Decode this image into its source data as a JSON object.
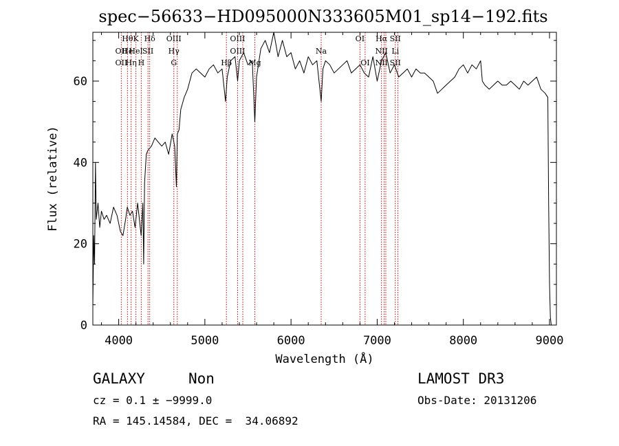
{
  "chart_data": {
    "type": "line",
    "title": "spec−56633−HD095000N333605M01_sp14−192.fits",
    "xlabel": "Wavelength (Å)",
    "ylabel": "Flux (relative)",
    "xlim": [
      3700,
      9080
    ],
    "ylim": [
      0,
      72
    ],
    "x_ticks": [
      4000,
      5000,
      6000,
      7000,
      8000,
      9000
    ],
    "y_ticks": [
      0,
      20,
      40,
      60
    ],
    "grid": false,
    "legend": "none",
    "series": [
      {
        "color": "#000000",
        "x": [
          3700,
          3710,
          3720,
          3730,
          3740,
          3760,
          3780,
          3800,
          3830,
          3860,
          3900,
          3940,
          3980,
          4000,
          4020,
          4050,
          4080,
          4100,
          4130,
          4160,
          4190,
          4220,
          4240,
          4260,
          4280,
          4290,
          4300,
          4320,
          4340,
          4380,
          4420,
          4460,
          4500,
          4540,
          4580,
          4620,
          4650,
          4670,
          4680,
          4700,
          4720,
          4760,
          4800,
          4850,
          4900,
          4950,
          5000,
          5050,
          5100,
          5150,
          5200,
          5240,
          5260,
          5300,
          5350,
          5380,
          5400,
          5450,
          5500,
          5550,
          5580,
          5600,
          5650,
          5700,
          5750,
          5800,
          5850,
          5900,
          5950,
          6000,
          6050,
          6100,
          6150,
          6200,
          6250,
          6300,
          6350,
          6370,
          6400,
          6450,
          6500,
          6550,
          6600,
          6650,
          6700,
          6750,
          6800,
          6850,
          6900,
          6950,
          7000,
          7050,
          7100,
          7150,
          7200,
          7250,
          7300,
          7350,
          7400,
          7450,
          7500,
          7550,
          7600,
          7650,
          7700,
          7750,
          7800,
          7850,
          7900,
          7950,
          8000,
          8050,
          8100,
          8150,
          8200,
          8220,
          8250,
          8300,
          8350,
          8400,
          8450,
          8500,
          8550,
          8600,
          8650,
          8700,
          8750,
          8800,
          8850,
          8900,
          8950,
          8980,
          8990,
          9000,
          9010,
          9020
        ],
        "y": [
          5,
          22,
          15,
          40,
          26,
          30,
          24,
          28,
          26,
          27,
          25,
          29,
          27,
          25,
          23,
          22,
          26,
          29,
          27,
          28,
          24,
          30,
          26,
          22,
          30,
          15,
          35,
          42,
          43,
          44,
          46,
          45,
          44,
          45,
          42,
          47,
          44,
          34,
          47,
          48,
          53,
          56,
          58,
          62,
          63,
          62,
          61,
          63,
          64,
          62,
          63,
          55,
          61,
          65,
          66,
          60,
          65,
          67,
          64,
          65,
          50,
          61,
          68,
          70,
          67,
          72,
          66,
          70,
          66,
          67,
          63,
          65,
          62,
          66,
          64,
          65,
          55,
          63,
          65,
          64,
          62,
          63,
          64,
          65,
          62,
          63,
          64,
          62,
          61,
          66,
          60,
          65,
          67,
          62,
          64,
          61,
          62,
          63,
          61,
          63,
          62,
          62,
          61,
          60,
          57,
          58,
          59,
          60,
          61,
          63,
          64,
          62,
          64,
          63,
          65,
          60,
          59,
          58,
          59,
          60,
          59,
          59,
          60,
          59,
          58,
          60,
          59,
          60,
          61,
          58,
          57,
          56,
          30,
          10,
          2,
          0
        ]
      }
    ],
    "lines": [
      {
        "x": 4030,
        "labels": [
          {
            "text": "OII",
            "row": 1
          },
          {
            "text": "OII",
            "row": 2
          }
        ]
      },
      {
        "x": 4102,
        "labels": [
          {
            "text": "Hθ",
            "row": 0
          },
          {
            "text": "He",
            "row": 1
          }
        ]
      },
      {
        "x": 4144,
        "labels": [
          {
            "text": "Hη",
            "row": 2
          }
        ]
      },
      {
        "x": 4200,
        "labels": [
          {
            "text": "K",
            "row": 0
          },
          {
            "text": "HeI",
            "row": 1
          }
        ]
      },
      {
        "x": 4262,
        "labels": [
          {
            "text": "H",
            "row": 2
          }
        ]
      },
      {
        "x": 4340,
        "labels": [
          {
            "text": "SII",
            "row": 1
          }
        ]
      },
      {
        "x": 4360,
        "labels": [
          {
            "text": "Hδ",
            "row": 0
          }
        ]
      },
      {
        "x": 4640,
        "labels": [
          {
            "text": "OIII",
            "row": 0
          },
          {
            "text": "Hγ",
            "row": 1
          },
          {
            "text": "G",
            "row": 2
          }
        ]
      },
      {
        "x": 4680,
        "labels": []
      },
      {
        "x": 5250,
        "labels": [
          {
            "text": "Hβ",
            "row": 2
          }
        ]
      },
      {
        "x": 5380,
        "labels": [
          {
            "text": "OIII",
            "row": 0
          },
          {
            "text": "OIII",
            "row": 1
          }
        ]
      },
      {
        "x": 5440,
        "labels": []
      },
      {
        "x": 5580,
        "labels": [
          {
            "text": "Mg",
            "row": 2
          }
        ]
      },
      {
        "x": 6350,
        "labels": [
          {
            "text": "Na",
            "row": 1
          }
        ]
      },
      {
        "x": 6800,
        "labels": [
          {
            "text": "OI",
            "row": 0
          }
        ]
      },
      {
        "x": 6860,
        "labels": [
          {
            "text": "OI",
            "row": 2
          }
        ]
      },
      {
        "x": 7050,
        "labels": [
          {
            "text": "Hα",
            "row": 0
          },
          {
            "text": "NII",
            "row": 1
          },
          {
            "text": "NII",
            "row": 2
          }
        ]
      },
      {
        "x": 7080,
        "labels": []
      },
      {
        "x": 7100,
        "labels": []
      },
      {
        "x": 7210,
        "labels": [
          {
            "text": "SII",
            "row": 0
          },
          {
            "text": "Li",
            "row": 1
          },
          {
            "text": "SII",
            "row": 2
          }
        ]
      },
      {
        "x": 7240,
        "labels": []
      }
    ],
    "line_color": "#cc0000"
  },
  "info": {
    "object_class": "GALAXY",
    "subclass": "Non",
    "survey": "LAMOST DR3",
    "cz": "cz = 0.1 ± −9999.0",
    "obs_date": "Obs-Date: 20131206",
    "coords": "RA = 145.14584, DEC =  34.06892"
  }
}
